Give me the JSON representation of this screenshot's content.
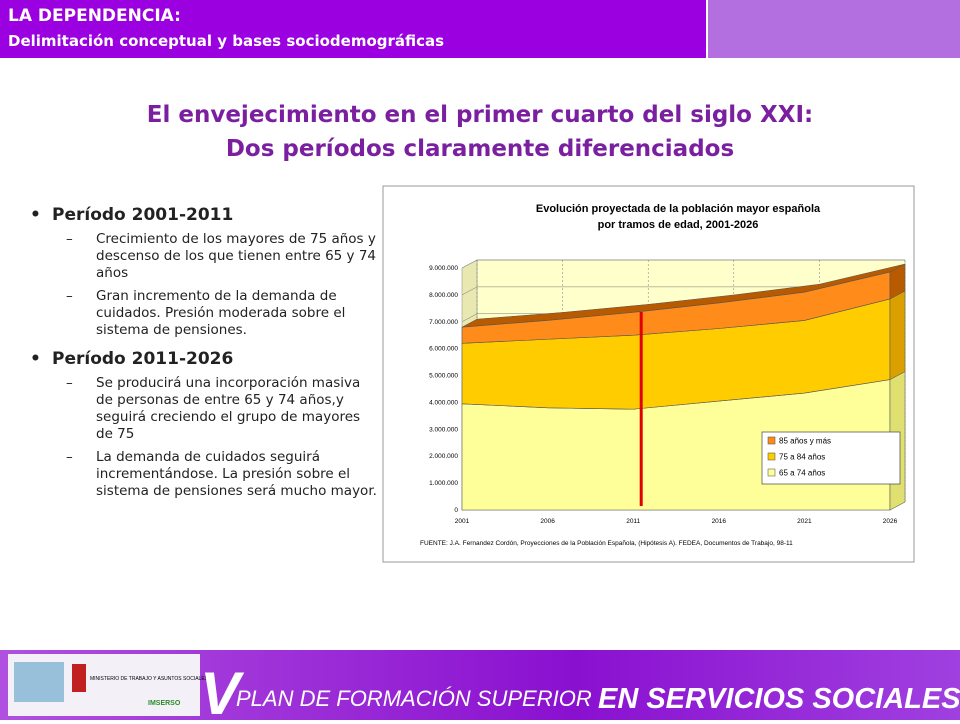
{
  "header": {
    "title": "LA DEPENDENCIA:",
    "subtitle": "Delimitación conceptual y bases sociodemográficas"
  },
  "slide_title": {
    "line1": "El envejecimiento en el primer cuarto del siglo XXI:",
    "line2": "Dos períodos claramente diferenciados"
  },
  "bullets": [
    {
      "text": "Período 2001-2011",
      "items": [
        "Crecimiento de los mayores de 75 años y descenso de los que tienen entre 65 y 74 años",
        "Gran incremento de la demanda de cuidados. Presión moderada sobre el sistema de pensiones."
      ]
    },
    {
      "text": "Período 2011-2026",
      "items": [
        "Se producirá una incorporación masiva de personas de entre 65 y 74 años,y seguirá creciendo el grupo de mayores de 75",
        "La demanda de cuidados seguirá incrementándose. La presión sobre el sistema de pensiones será mucho mayor."
      ]
    }
  ],
  "chart_data": {
    "type": "stacked_area_3d",
    "title": "Evolución proyectada de la población mayor española",
    "subtitle": "por tramos de edad, 2001-2026",
    "x": [
      2001,
      2006,
      2011,
      2016,
      2021,
      2026
    ],
    "xlim": [
      2001,
      2026
    ],
    "xticks": [
      2001,
      2006,
      2011,
      2016,
      2021,
      2026
    ],
    "ylim": [
      0,
      9000000
    ],
    "yticks": [
      0,
      {
        "value": 1000000,
        "label": "1.000.000"
      },
      {
        "value": 2000000,
        "label": "2.000.000"
      },
      {
        "value": 3000000,
        "label": "3.000.000"
      },
      {
        "value": 4000000,
        "label": "4.000.000"
      },
      {
        "value": 5000000,
        "label": "5.000.000"
      },
      {
        "value": 6000000,
        "label": "6.000.000"
      },
      {
        "value": 7000000,
        "label": "7.000.000"
      },
      {
        "value": 8000000,
        "label": "8.000.000"
      },
      {
        "value": 9000000,
        "label": "9.000.000"
      }
    ],
    "grid": true,
    "series": [
      {
        "name": "65 a 74 años",
        "color": "#ffff99",
        "values": [
          3950000,
          3800000,
          3750000,
          4050000,
          4350000,
          4850000
        ]
      },
      {
        "name": "75 a 84 años",
        "color": "#ffcc00",
        "values": [
          2250000,
          2550000,
          2750000,
          2700000,
          2700000,
          3000000
        ]
      },
      {
        "name": "85 años y más",
        "color": "#ff8c1a",
        "values": [
          600000,
          700000,
          850000,
          950000,
          1050000,
          1000000
        ]
      }
    ],
    "source": "FUENTE: J.A. Fernandez Cordón, Proyecciones de la Población Española, (Hipótesis A). FEDEA, Documentos de Trabajo, 98-11"
  },
  "footer": {
    "numeral": "V",
    "text1": "PLAN DE FORMACIÓN SUPERIOR",
    "text2": "EN SERVICIOS SOCIALES",
    "logo1": "MINISTERIO DE TRABAJO Y ASUNTOS SOCIALES",
    "logo2": "IMSERSO"
  }
}
